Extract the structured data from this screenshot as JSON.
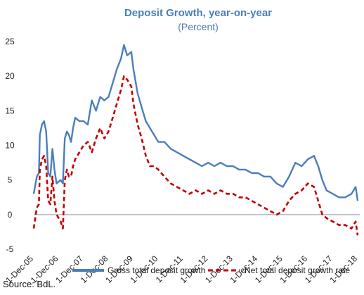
{
  "chart_data": {
    "type": "line",
    "title": "Deposit Growth, year-on-year",
    "subtitle": "(Percent)",
    "xlabel": "",
    "ylabel": "",
    "ylim": [
      -5,
      25
    ],
    "yticks": [
      -5,
      0,
      5,
      10,
      15,
      20,
      25
    ],
    "xlim": [
      "2005-12-01",
      "2019-01-01"
    ],
    "xticks": [
      "1-Dec-05",
      "1-Dec-06",
      "1-Dec-07",
      "1-Dec-08",
      "1-Dec-09",
      "1-Dec-10",
      "1-Dec-11",
      "1-Dec-12",
      "1-Dec-13",
      "1-Dec-14",
      "1-Dec-15",
      "1-Dec-16",
      "1-Dec-17",
      "1-Dec-18"
    ],
    "grid": false,
    "legend_position": "bottom",
    "series": [
      {
        "name": "Gross total deposit growth",
        "color": "#4a7ebb",
        "style": "solid",
        "points": [
          [
            "2005-12-01",
            3.0
          ],
          [
            "2006-01-15",
            5.5
          ],
          [
            "2006-02-15",
            6.0
          ],
          [
            "2006-03-01",
            11.5
          ],
          [
            "2006-04-01",
            13.0
          ],
          [
            "2006-05-01",
            13.5
          ],
          [
            "2006-06-01",
            12.0
          ],
          [
            "2006-07-01",
            6.0
          ],
          [
            "2006-08-01",
            5.5
          ],
          [
            "2006-09-01",
            9.5
          ],
          [
            "2006-10-01",
            6.5
          ],
          [
            "2006-11-01",
            4.5
          ],
          [
            "2007-01-01",
            5.0
          ],
          [
            "2007-02-01",
            4.5
          ],
          [
            "2007-03-01",
            11.0
          ],
          [
            "2007-04-01",
            12.0
          ],
          [
            "2007-05-01",
            11.5
          ],
          [
            "2007-06-01",
            10.5
          ],
          [
            "2007-07-01",
            12.5
          ],
          [
            "2007-08-01",
            14.0
          ],
          [
            "2007-10-01",
            13.5
          ],
          [
            "2007-12-01",
            13.5
          ],
          [
            "2008-02-01",
            13.0
          ],
          [
            "2008-04-01",
            16.5
          ],
          [
            "2008-06-01",
            15.0
          ],
          [
            "2008-08-01",
            17.0
          ],
          [
            "2008-10-01",
            16.5
          ],
          [
            "2008-12-01",
            17.0
          ],
          [
            "2009-02-01",
            19.0
          ],
          [
            "2009-04-01",
            21.0
          ],
          [
            "2009-06-01",
            22.5
          ],
          [
            "2009-07-15",
            24.5
          ],
          [
            "2009-09-01",
            23.0
          ],
          [
            "2009-11-01",
            23.5
          ],
          [
            "2009-12-01",
            21.0
          ],
          [
            "2010-02-01",
            17.5
          ],
          [
            "2010-04-01",
            15.5
          ],
          [
            "2010-06-01",
            13.5
          ],
          [
            "2010-08-01",
            12.5
          ],
          [
            "2010-10-01",
            11.5
          ],
          [
            "2010-12-01",
            10.5
          ],
          [
            "2011-03-01",
            10.5
          ],
          [
            "2011-06-01",
            9.5
          ],
          [
            "2011-09-01",
            9.0
          ],
          [
            "2011-12-01",
            8.5
          ],
          [
            "2012-03-01",
            8.0
          ],
          [
            "2012-06-01",
            7.5
          ],
          [
            "2012-09-01",
            7.0
          ],
          [
            "2012-12-01",
            7.5
          ],
          [
            "2013-03-01",
            7.0
          ],
          [
            "2013-06-01",
            7.5
          ],
          [
            "2013-09-01",
            7.0
          ],
          [
            "2013-12-01",
            7.0
          ],
          [
            "2014-03-01",
            6.5
          ],
          [
            "2014-06-01",
            6.5
          ],
          [
            "2014-09-01",
            6.0
          ],
          [
            "2014-12-01",
            6.0
          ],
          [
            "2015-03-01",
            5.5
          ],
          [
            "2015-06-01",
            5.5
          ],
          [
            "2015-09-01",
            4.5
          ],
          [
            "2015-12-01",
            4.0
          ],
          [
            "2016-03-01",
            5.5
          ],
          [
            "2016-06-01",
            7.5
          ],
          [
            "2016-09-01",
            7.0
          ],
          [
            "2016-12-01",
            8.0
          ],
          [
            "2017-03-01",
            8.5
          ],
          [
            "2017-05-01",
            7.0
          ],
          [
            "2017-07-01",
            5.0
          ],
          [
            "2017-09-01",
            3.5
          ],
          [
            "2017-12-01",
            3.0
          ],
          [
            "2018-03-01",
            2.5
          ],
          [
            "2018-06-01",
            2.5
          ],
          [
            "2018-09-01",
            3.0
          ],
          [
            "2018-11-01",
            4.0
          ],
          [
            "2018-12-01",
            2.0
          ]
        ]
      },
      {
        "name": "Net total deposit growth rate",
        "color": "#c00000",
        "style": "dashed",
        "points": [
          [
            "2005-12-01",
            -2.0
          ],
          [
            "2006-01-15",
            1.0
          ],
          [
            "2006-02-15",
            1.5
          ],
          [
            "2006-03-01",
            6.5
          ],
          [
            "2006-04-01",
            8.0
          ],
          [
            "2006-05-01",
            8.5
          ],
          [
            "2006-06-01",
            7.0
          ],
          [
            "2006-07-01",
            2.0
          ],
          [
            "2006-08-01",
            1.5
          ],
          [
            "2006-09-01",
            5.5
          ],
          [
            "2006-10-01",
            2.0
          ],
          [
            "2006-11-01",
            0.0
          ],
          [
            "2007-01-01",
            -1.0
          ],
          [
            "2007-02-01",
            -2.0
          ],
          [
            "2007-03-01",
            5.0
          ],
          [
            "2007-04-01",
            6.5
          ],
          [
            "2007-05-01",
            5.5
          ],
          [
            "2007-06-01",
            5.5
          ],
          [
            "2007-07-01",
            7.0
          ],
          [
            "2007-08-01",
            8.0
          ],
          [
            "2007-10-01",
            9.0
          ],
          [
            "2007-12-01",
            10.0
          ],
          [
            "2008-02-01",
            10.5
          ],
          [
            "2008-04-01",
            9.0
          ],
          [
            "2008-06-01",
            11.0
          ],
          [
            "2008-08-01",
            12.5
          ],
          [
            "2008-10-01",
            11.0
          ],
          [
            "2008-12-01",
            12.0
          ],
          [
            "2009-02-01",
            14.0
          ],
          [
            "2009-04-01",
            16.0
          ],
          [
            "2009-06-01",
            18.0
          ],
          [
            "2009-07-15",
            20.0
          ],
          [
            "2009-09-01",
            19.5
          ],
          [
            "2009-11-01",
            18.5
          ],
          [
            "2009-12-01",
            16.0
          ],
          [
            "2010-02-01",
            13.0
          ],
          [
            "2010-04-01",
            11.0
          ],
          [
            "2010-06-01",
            8.5
          ],
          [
            "2010-08-01",
            7.0
          ],
          [
            "2010-10-01",
            7.0
          ],
          [
            "2010-12-01",
            6.5
          ],
          [
            "2011-03-01",
            5.5
          ],
          [
            "2011-06-01",
            4.5
          ],
          [
            "2011-09-01",
            4.0
          ],
          [
            "2011-12-01",
            3.5
          ],
          [
            "2012-03-01",
            3.0
          ],
          [
            "2012-06-01",
            3.5
          ],
          [
            "2012-09-01",
            3.0
          ],
          [
            "2012-12-01",
            3.5
          ],
          [
            "2013-03-01",
            3.0
          ],
          [
            "2013-06-01",
            3.5
          ],
          [
            "2013-09-01",
            3.0
          ],
          [
            "2013-12-01",
            3.0
          ],
          [
            "2014-03-01",
            2.5
          ],
          [
            "2014-06-01",
            2.5
          ],
          [
            "2014-09-01",
            2.0
          ],
          [
            "2014-12-01",
            1.5
          ],
          [
            "2015-03-01",
            1.0
          ],
          [
            "2015-06-01",
            0.5
          ],
          [
            "2015-09-01",
            0.0
          ],
          [
            "2015-12-01",
            0.5
          ],
          [
            "2016-03-01",
            2.0
          ],
          [
            "2016-06-01",
            3.0
          ],
          [
            "2016-09-01",
            3.5
          ],
          [
            "2016-12-01",
            4.5
          ],
          [
            "2017-03-01",
            4.0
          ],
          [
            "2017-05-01",
            2.0
          ],
          [
            "2017-07-01",
            0.0
          ],
          [
            "2017-09-01",
            -0.5
          ],
          [
            "2017-12-01",
            -1.0
          ],
          [
            "2018-03-01",
            -1.5
          ],
          [
            "2018-06-01",
            -1.5
          ],
          [
            "2018-09-01",
            -2.0
          ],
          [
            "2018-11-01",
            -1.0
          ],
          [
            "2018-12-01",
            -3.0
          ]
        ]
      }
    ]
  },
  "source": "Source: BdL."
}
